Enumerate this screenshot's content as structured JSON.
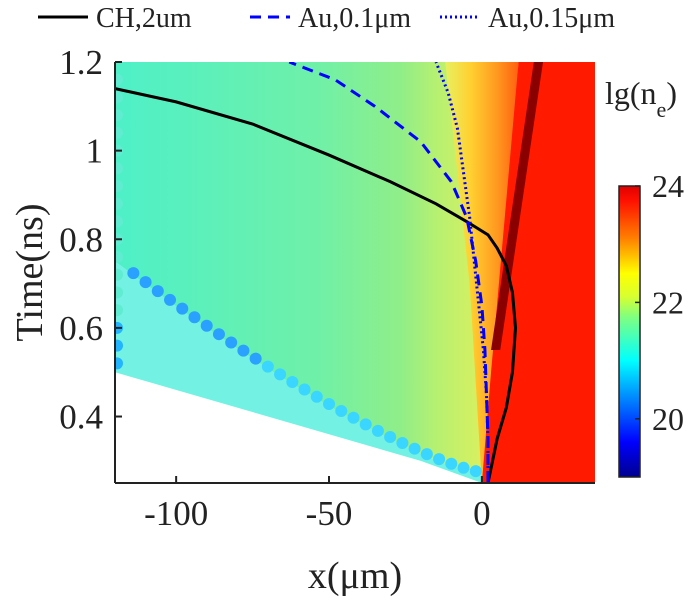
{
  "chart_data": {
    "type": "heatmap",
    "title": "",
    "xlabel": "x(μm)",
    "ylabel": "Time(ns)",
    "xlim": [
      -120,
      37
    ],
    "ylim": [
      0.25,
      1.2
    ],
    "xticks": [
      -100,
      -50,
      0
    ],
    "xtick_labels": [
      "-100",
      "-50",
      "0"
    ],
    "yticks": [
      0.4,
      0.6,
      0.8,
      1.0,
      1.2
    ],
    "ytick_labels": [
      "0.4",
      "0.6",
      "0.8",
      "1",
      "1.2"
    ],
    "colorbar": {
      "label_main": "lg(n",
      "label_sub": "e",
      "label_close": ")",
      "range": [
        19,
        24
      ],
      "ticks": [
        20,
        22,
        24
      ],
      "tick_labels": [
        "20",
        "22",
        "24"
      ],
      "colors": [
        "#00008f",
        "#0000ff",
        "#0080ff",
        "#00ffff",
        "#80ff80",
        "#ffff00",
        "#ff8000",
        "#ff0000",
        "#800000"
      ]
    },
    "series": [
      {
        "name": "CH,2um",
        "style": "solid",
        "color": "#000000",
        "x": [
          2,
          5,
          8,
          10,
          11,
          10,
          8,
          5,
          2,
          -5,
          -15,
          -30,
          -50,
          -75,
          -100,
          -120
        ],
        "y": [
          0.25,
          0.35,
          0.42,
          0.5,
          0.6,
          0.68,
          0.74,
          0.78,
          0.81,
          0.84,
          0.88,
          0.93,
          0.99,
          1.06,
          1.11,
          1.14
        ]
      },
      {
        "name": "Au,0.1μm",
        "style": "dashed",
        "color": "#0000ff",
        "x": [
          2,
          2,
          1.5,
          1,
          0,
          -2,
          -5,
          -10,
          -20,
          -35,
          -48,
          -63
        ],
        "y": [
          0.25,
          0.35,
          0.45,
          0.55,
          0.65,
          0.75,
          0.85,
          0.93,
          1.02,
          1.1,
          1.16,
          1.2
        ]
      },
      {
        "name": "Au,0.15μm",
        "style": "dotted",
        "color": "#0000ff",
        "x": [
          2,
          2,
          1.5,
          0.5,
          -1,
          -2.5,
          -4,
          -6,
          -8,
          -11,
          -15
        ],
        "y": [
          0.25,
          0.35,
          0.45,
          0.55,
          0.65,
          0.75,
          0.85,
          0.95,
          1.05,
          1.13,
          1.2
        ]
      }
    ],
    "legend": {
      "position": "top"
    }
  }
}
